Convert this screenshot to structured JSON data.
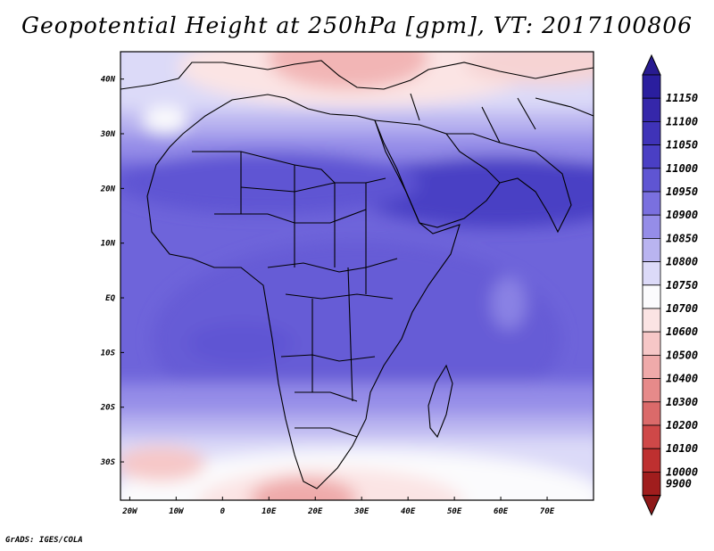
{
  "title": "Geopotential Height at 250hPa [gpm], VT: 2017100806",
  "credit": "GrADS: IGES/COLA",
  "map": {
    "projection": "latlon",
    "lon_range": [
      -22,
      80
    ],
    "lat_range": [
      -37,
      45
    ],
    "x_ticks": [
      {
        "lon": -20,
        "label": "20W"
      },
      {
        "lon": -10,
        "label": "10W"
      },
      {
        "lon": 0,
        "label": "0"
      },
      {
        "lon": 10,
        "label": "10E"
      },
      {
        "lon": 20,
        "label": "20E"
      },
      {
        "lon": 30,
        "label": "30E"
      },
      {
        "lon": 40,
        "label": "40E"
      },
      {
        "lon": 50,
        "label": "50E"
      },
      {
        "lon": 60,
        "label": "60E"
      },
      {
        "lon": 70,
        "label": "70E"
      }
    ],
    "y_ticks": [
      {
        "lat": 40,
        "label": "40N"
      },
      {
        "lat": 30,
        "label": "30N"
      },
      {
        "lat": 20,
        "label": "20N"
      },
      {
        "lat": 10,
        "label": "10N"
      },
      {
        "lat": 0,
        "label": "EQ"
      },
      {
        "lat": -10,
        "label": "10S"
      },
      {
        "lat": -20,
        "label": "20S"
      },
      {
        "lat": -30,
        "label": "30S"
      }
    ]
  },
  "colorbar": {
    "levels": [
      {
        "label": "11150",
        "color": "#2a1e9e"
      },
      {
        "label": "11100",
        "color": "#3527aa"
      },
      {
        "label": "11050",
        "color": "#3f33b8"
      },
      {
        "label": "11000",
        "color": "#4a3fc4"
      },
      {
        "label": "10950",
        "color": "#5f55d3"
      },
      {
        "label": "10900",
        "color": "#7a70df"
      },
      {
        "label": "10850",
        "color": "#958de8"
      },
      {
        "label": "10800",
        "color": "#b9b4f0"
      },
      {
        "label": "10750",
        "color": "#dcdaf8"
      },
      {
        "label": "10700",
        "color": "#fbfbfd"
      },
      {
        "label": "10600",
        "color": "#fbe4e4"
      },
      {
        "label": "10500",
        "color": "#f6c7c7"
      },
      {
        "label": "10400",
        "color": "#efaaaa"
      },
      {
        "label": "10300",
        "color": "#e68a8a"
      },
      {
        "label": "10200",
        "color": "#db6a6a"
      },
      {
        "label": "10100",
        "color": "#cf4848"
      },
      {
        "label": "10000",
        "color": "#be3030"
      },
      {
        "label": "9900",
        "color": "#a01d1d"
      }
    ],
    "top_color": "#281b90",
    "bottom_color": "#8e1818"
  }
}
